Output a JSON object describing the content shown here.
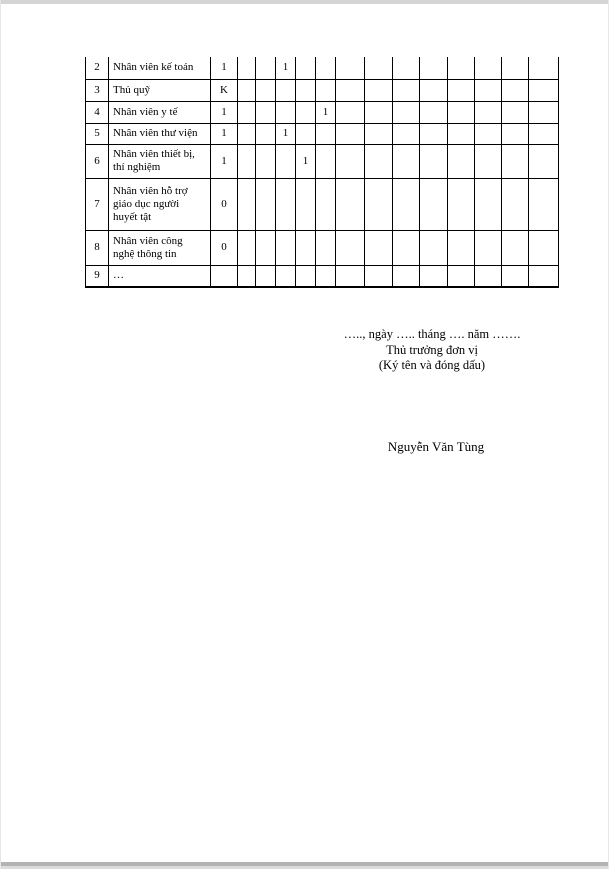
{
  "table": {
    "rows": [
      {
        "stt": "2",
        "name": "Nhân viên kế toán",
        "cells": [
          "1",
          "",
          "",
          "1",
          "",
          "",
          "",
          "",
          "",
          "",
          "",
          "",
          "",
          ""
        ]
      },
      {
        "stt": "3",
        "name": "Thủ quỹ",
        "cells": [
          "K",
          "",
          "",
          "",
          "",
          "",
          "",
          "",
          "",
          "",
          "",
          "",
          "",
          ""
        ]
      },
      {
        "stt": "4",
        "name": "Nhân viên y tế",
        "cells": [
          "1",
          "",
          "",
          "",
          "",
          "1",
          "",
          "",
          "",
          "",
          "",
          "",
          "",
          ""
        ]
      },
      {
        "stt": "5",
        "name": "Nhân viên thư viện",
        "cells": [
          "1",
          "",
          "",
          "1",
          "",
          "",
          "",
          "",
          "",
          "",
          "",
          "",
          "",
          ""
        ]
      },
      {
        "stt": "6",
        "name": "Nhân viên thiết bị, thí nghiệm",
        "cells": [
          "1",
          "",
          "",
          "",
          "1",
          "",
          "",
          "",
          "",
          "",
          "",
          "",
          "",
          ""
        ]
      },
      {
        "stt": "7",
        "name": "Nhân viên hỗ trợ giáo dục người huyết tật",
        "cells": [
          "0",
          "",
          "",
          "",
          "",
          "",
          "",
          "",
          "",
          "",
          "",
          "",
          "",
          ""
        ]
      },
      {
        "stt": "8",
        "name": "Nhân viên công nghệ thông tin",
        "cells": [
          "0",
          "",
          "",
          "",
          "",
          "",
          "",
          "",
          "",
          "",
          "",
          "",
          "",
          ""
        ]
      },
      {
        "stt": "9",
        "name": "…",
        "cells": [
          "",
          "",
          "",
          "",
          "",
          "",
          "",
          "",
          "",
          "",
          "",
          "",
          "",
          ""
        ]
      }
    ]
  },
  "signature": {
    "date_line": "….., ngày ….. tháng …. năm …….",
    "title": "Thủ trưởng đơn vị",
    "note": "(Ký tên và đóng dấu)",
    "name": "Nguyễn Văn Tùng"
  }
}
